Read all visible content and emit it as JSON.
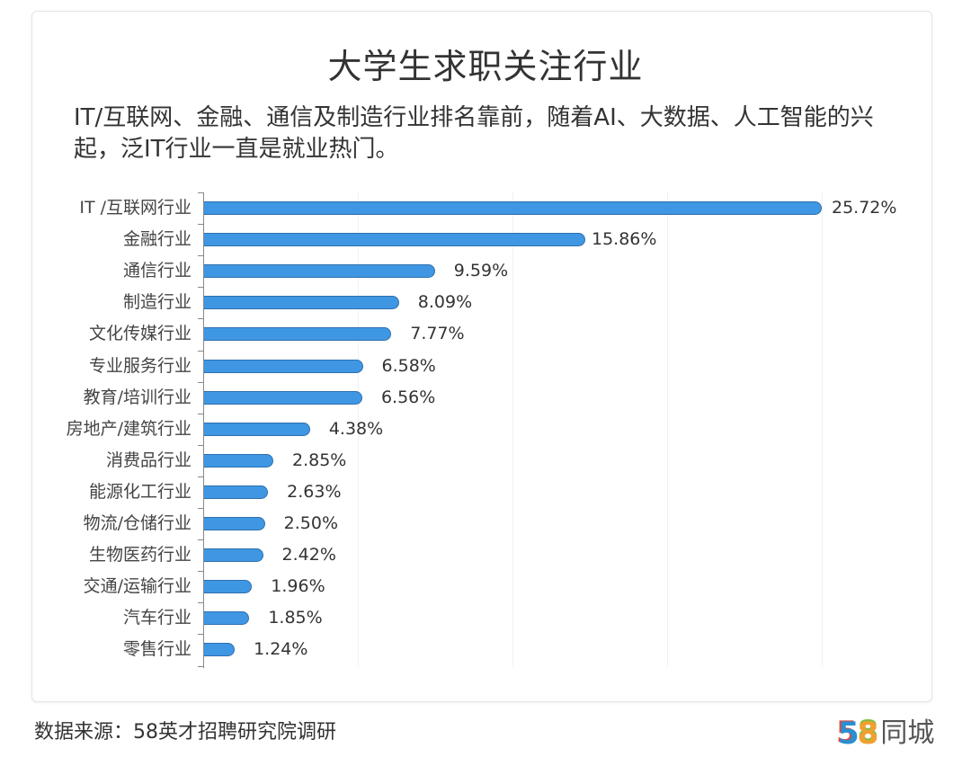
{
  "title": "大学生求职关注行业",
  "subtitle": "IT/互联网、金融、通信及制造行业排名靠前，随着AI、大数据、人工智能的兴起，泛IT行业一直是就业热门。",
  "footer": {
    "source": "数据来源：58英才招聘研究院调研",
    "logo_number_5": "5",
    "logo_number_8": "8",
    "logo_text": "同城"
  },
  "colors": {
    "bar": "#3f97e3",
    "bar_border": "#2f6fae"
  },
  "chart_data": {
    "type": "bar",
    "orientation": "horizontal",
    "title": "大学生求职关注行业",
    "subtitle": "IT/互联网、金融、通信及制造行业排名靠前，随着AI、大数据、人工智能的兴起，泛IT行业一直是就业热门。",
    "xlabel": "",
    "ylabel": "",
    "unit": "%",
    "grid": true,
    "legend": null,
    "categories": [
      "IT /互联网行业",
      "金融行业",
      "通信行业",
      "制造行业",
      "文化传媒行业",
      "专业服务行业",
      "教育/培训行业",
      "房地产/建筑行业",
      "消费品行业",
      "能源化工行业",
      "物流/仓储行业",
      "生物医药行业",
      "交通/运输行业",
      "汽车行业",
      "零售行业"
    ],
    "values": [
      25.72,
      15.86,
      9.59,
      8.09,
      7.77,
      6.58,
      6.56,
      4.38,
      2.85,
      2.63,
      2.5,
      2.42,
      1.96,
      1.85,
      1.24
    ],
    "value_labels": [
      "25.72%",
      "15.86%",
      "9.59%",
      "8.09%",
      "7.77%",
      "6.58%",
      "6.56%",
      "4.38%",
      "2.85%",
      "2.63%",
      "2.50%",
      "2.42%",
      "1.96%",
      "1.85%",
      "1.24%"
    ],
    "source": "数据来源：58英才招聘研究院调研"
  }
}
